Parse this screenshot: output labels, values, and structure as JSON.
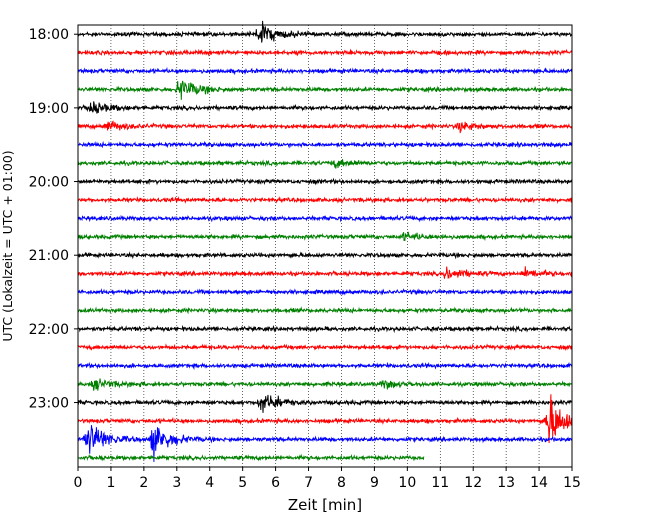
{
  "chart_data": {
    "type": "line",
    "title": "",
    "xlabel": "Zeit  [min]",
    "ylabel": "UTC (Lokalzeit = UTC + 01:00)",
    "xlim": [
      0,
      15
    ],
    "x_ticks": [
      0,
      1,
      2,
      3,
      4,
      5,
      6,
      7,
      8,
      9,
      10,
      11,
      12,
      13,
      14,
      15
    ],
    "ylim": [
      "17:52:30",
      "23:52:30"
    ],
    "y_ticks": [
      "18:00",
      "19:00",
      "20:00",
      "21:00",
      "22:00",
      "23:00"
    ],
    "grid": "vertical dotted lines at each minute",
    "trace_interval_min": 15,
    "colors_cycle": [
      "#000000",
      "#ff0000",
      "#0000ff",
      "#008000"
    ],
    "traces": [
      {
        "start": "18:00",
        "color": "#000000",
        "events": [
          {
            "t": 5.5,
            "amp": 10
          }
        ]
      },
      {
        "start": "18:15",
        "color": "#ff0000",
        "events": []
      },
      {
        "start": "18:30",
        "color": "#0000ff",
        "events": []
      },
      {
        "start": "18:45",
        "color": "#008000",
        "events": [
          {
            "t": 3.1,
            "amp": 9
          }
        ]
      },
      {
        "start": "19:00",
        "color": "#000000",
        "events": [
          {
            "t": 0.4,
            "amp": 5
          }
        ]
      },
      {
        "start": "19:15",
        "color": "#ff0000",
        "events": [
          {
            "t": 0.9,
            "amp": 4
          },
          {
            "t": 11.6,
            "amp": 4
          }
        ]
      },
      {
        "start": "19:30",
        "color": "#0000ff",
        "events": []
      },
      {
        "start": "19:45",
        "color": "#008000",
        "events": [
          {
            "t": 7.8,
            "amp": 3
          }
        ]
      },
      {
        "start": "20:00",
        "color": "#000000",
        "events": []
      },
      {
        "start": "20:15",
        "color": "#ff0000",
        "events": []
      },
      {
        "start": "20:30",
        "color": "#0000ff",
        "events": []
      },
      {
        "start": "20:45",
        "color": "#008000",
        "events": [
          {
            "t": 9.9,
            "amp": 3
          }
        ]
      },
      {
        "start": "21:00",
        "color": "#000000",
        "events": []
      },
      {
        "start": "21:15",
        "color": "#ff0000",
        "events": [
          {
            "t": 11.2,
            "amp": 5
          },
          {
            "t": 13.6,
            "amp": 4
          }
        ]
      },
      {
        "start": "21:30",
        "color": "#0000ff",
        "events": []
      },
      {
        "start": "21:45",
        "color": "#008000",
        "events": []
      },
      {
        "start": "22:00",
        "color": "#000000",
        "events": []
      },
      {
        "start": "22:15",
        "color": "#ff0000",
        "events": []
      },
      {
        "start": "22:30",
        "color": "#0000ff",
        "events": []
      },
      {
        "start": "22:45",
        "color": "#008000",
        "events": [
          {
            "t": 0.5,
            "amp": 4
          },
          {
            "t": 9.3,
            "amp": 3
          }
        ]
      },
      {
        "start": "23:00",
        "color": "#000000",
        "events": [
          {
            "t": 5.6,
            "amp": 8
          }
        ]
      },
      {
        "start": "23:15",
        "color": "#ff0000",
        "events": [
          {
            "t": 14.3,
            "amp": 22
          }
        ]
      },
      {
        "start": "23:30",
        "color": "#0000ff",
        "events": [
          {
            "t": 0.3,
            "amp": 16
          },
          {
            "t": 2.3,
            "amp": 14
          }
        ]
      },
      {
        "start": "23:45",
        "color": "#008000",
        "events": [],
        "end_min": 10.5
      }
    ]
  }
}
